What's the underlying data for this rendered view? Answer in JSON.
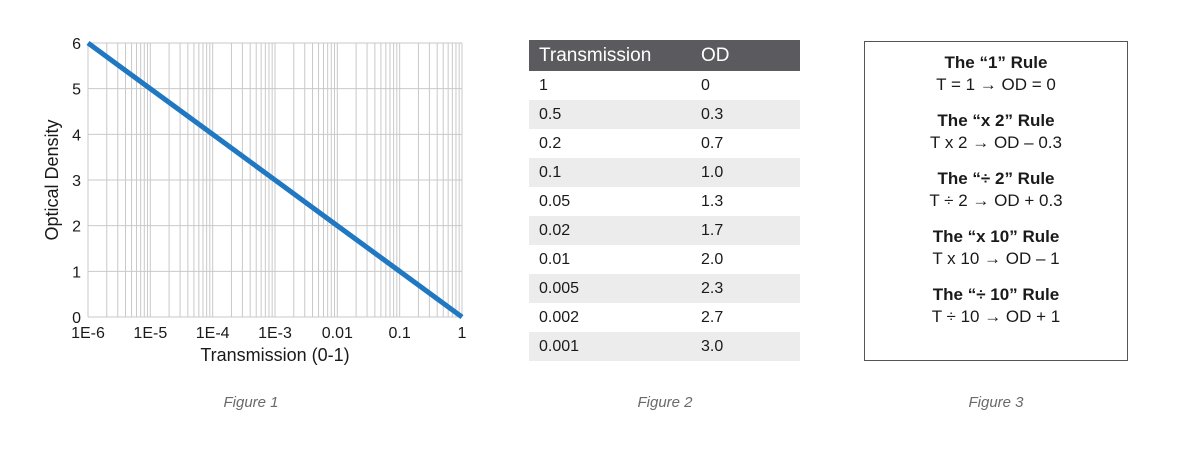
{
  "figure1": {
    "caption": "Figure 1",
    "chart_data": {
      "type": "line",
      "xlabel": "Transmission (0-1)",
      "ylabel": "Optical Density",
      "x_scale": "log",
      "xlim": [
        1e-06,
        1
      ],
      "ylim": [
        0,
        6
      ],
      "x_ticks": [
        1e-06,
        1e-05,
        0.0001,
        0.001,
        0.01,
        0.1,
        1
      ],
      "x_tick_labels": [
        "1E-6",
        "1E-5",
        "1E-4",
        "1E-3",
        "0.01",
        "0.1",
        "1"
      ],
      "y_ticks": [
        0,
        1,
        2,
        3,
        4,
        5,
        6
      ],
      "y_tick_labels": [
        "0",
        "1",
        "2",
        "3",
        "4",
        "5",
        "6"
      ],
      "grid": true,
      "series": [
        {
          "color": "#1f78c1",
          "x": [
            1e-06,
            1e-05,
            0.0001,
            0.001,
            0.01,
            0.1,
            1
          ],
          "y": [
            6,
            5,
            4,
            3,
            2,
            1,
            0
          ]
        }
      ]
    }
  },
  "figure2": {
    "caption": "Figure 2",
    "headers": [
      "Transmission",
      "OD"
    ],
    "rows": [
      [
        "1",
        "0"
      ],
      [
        "0.5",
        "0.3"
      ],
      [
        "0.2",
        "0.7"
      ],
      [
        "0.1",
        "1.0"
      ],
      [
        "0.05",
        "1.3"
      ],
      [
        "0.02",
        "1.7"
      ],
      [
        "0.01",
        "2.0"
      ],
      [
        "0.005",
        "2.3"
      ],
      [
        "0.002",
        "2.7"
      ],
      [
        "0.001",
        "3.0"
      ]
    ]
  },
  "figure3": {
    "caption": "Figure 3",
    "rules": [
      {
        "title": "The “1” Rule",
        "text": "T = 1 → OD = 0"
      },
      {
        "title": "The “x 2” Rule",
        "text": "T x 2 → OD – 0.3"
      },
      {
        "title": "The “÷ 2” Rule",
        "text": "T ÷ 2 → OD + 0.3"
      },
      {
        "title": "The “x 10” Rule",
        "text": "T x 10 → OD – 1"
      },
      {
        "title": "The “÷ 10” Rule",
        "text": "T ÷ 10 → OD + 1"
      }
    ]
  }
}
